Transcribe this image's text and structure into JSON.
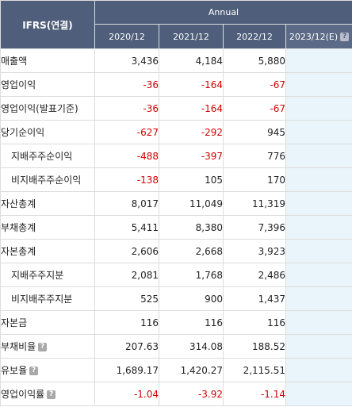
{
  "header": {
    "corner_label": "IFRS(연결)",
    "group_label": "Annual",
    "periods": [
      "2020/12",
      "2021/12",
      "2022/12",
      "2023/12(E)"
    ],
    "help_glyph": "?"
  },
  "rows": [
    {
      "label": "매출액",
      "values": [
        "3,436",
        "4,184",
        "5,880",
        ""
      ]
    },
    {
      "label": "영업이익",
      "values": [
        "-36",
        "-164",
        "-67",
        ""
      ]
    },
    {
      "label": "영업이익(발표기준)",
      "values": [
        "-36",
        "-164",
        "-67",
        ""
      ]
    },
    {
      "label": "당기순이익",
      "values": [
        "-627",
        "-292",
        "945",
        ""
      ]
    },
    {
      "label": "지배주주순이익",
      "values": [
        "-488",
        "-397",
        "776",
        ""
      ]
    },
    {
      "label": "비지배주주순이익",
      "values": [
        "-138",
        "105",
        "170",
        ""
      ]
    },
    {
      "label": "자산총계",
      "values": [
        "8,017",
        "11,049",
        "11,319",
        ""
      ]
    },
    {
      "label": "부채총계",
      "values": [
        "5,411",
        "8,380",
        "7,396",
        ""
      ]
    },
    {
      "label": "자본총계",
      "values": [
        "2,606",
        "2,668",
        "3,923",
        ""
      ]
    },
    {
      "label": "지배주주지분",
      "values": [
        "2,081",
        "1,768",
        "2,486",
        ""
      ]
    },
    {
      "label": "비지배주주지분",
      "values": [
        "525",
        "900",
        "1,437",
        ""
      ]
    },
    {
      "label": "자본금",
      "values": [
        "116",
        "116",
        "116",
        ""
      ]
    },
    {
      "label": "부채비율",
      "values": [
        "207.63",
        "314.08",
        "188.52",
        ""
      ]
    },
    {
      "label": "유보율",
      "values": [
        "1,689.17",
        "1,420.27",
        "2,115.51",
        ""
      ]
    },
    {
      "label": "영업이익률",
      "values": [
        "-1.04",
        "-3.92",
        "-1.14",
        ""
      ]
    }
  ],
  "colors": {
    "header_bg": "#4f5e7b",
    "negative": "#d40000",
    "estimate_bg": "#eaf5fb"
  }
}
